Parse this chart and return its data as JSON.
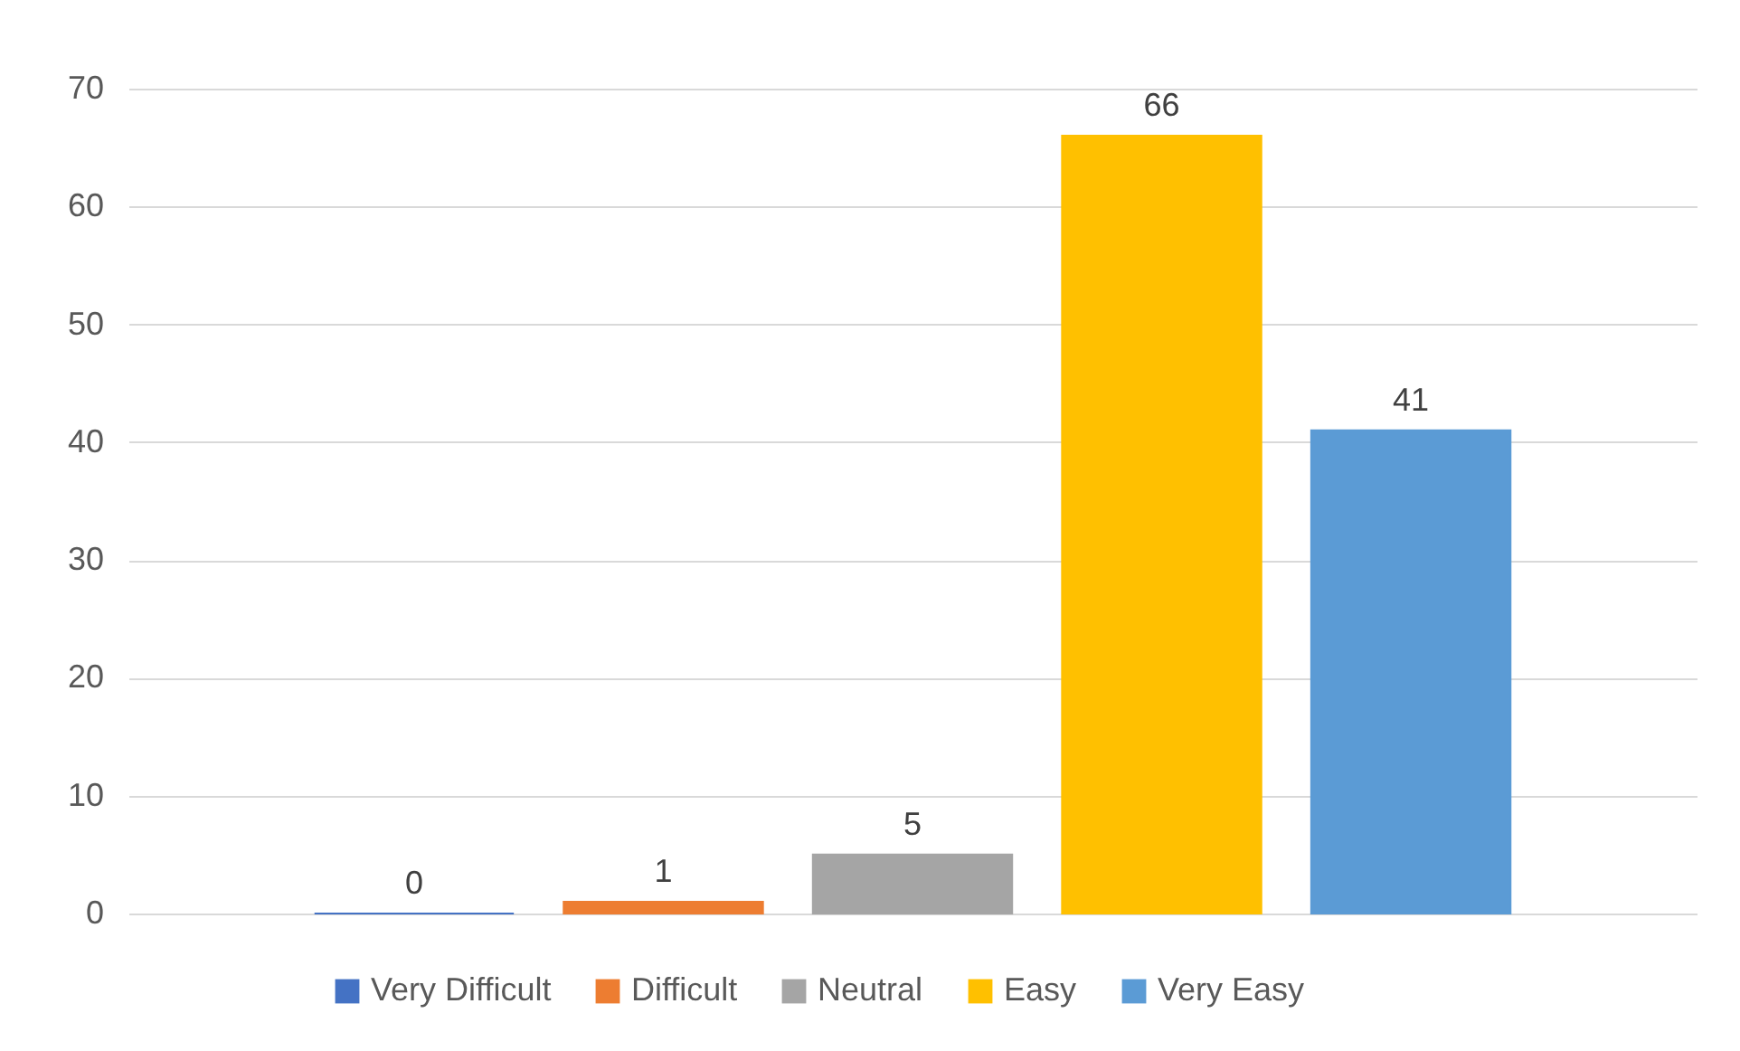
{
  "chart_data": {
    "type": "bar",
    "categories": [
      null
    ],
    "series": [
      {
        "name": "Very Difficult",
        "color": "#4472c4",
        "values": [
          0
        ]
      },
      {
        "name": "Difficult",
        "color": "#ed7d31",
        "values": [
          1
        ]
      },
      {
        "name": "Neutral",
        "color": "#a5a5a5",
        "values": [
          5
        ]
      },
      {
        "name": "Easy",
        "color": "#ffc000",
        "values": [
          66
        ]
      },
      {
        "name": "Very Easy",
        "color": "#5b9bd5",
        "values": [
          41
        ]
      }
    ],
    "ylim": [
      0,
      70
    ],
    "yticks": [
      0,
      10,
      20,
      30,
      40,
      50,
      60,
      70
    ],
    "grid": "y",
    "legend": "bottom",
    "data_labels": true
  }
}
